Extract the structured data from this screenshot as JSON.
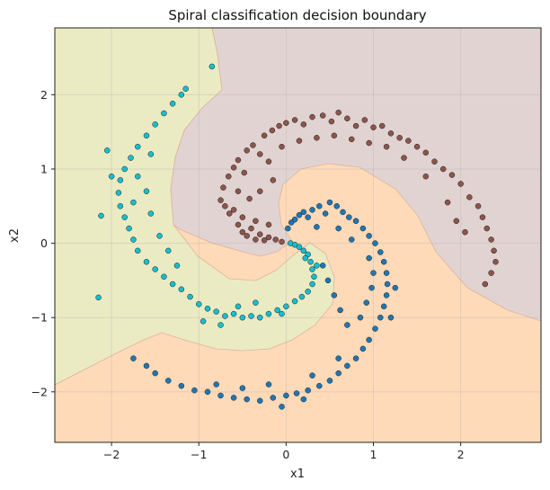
{
  "chart_data": {
    "type": "scatter",
    "title": "Spiral classification decision boundary",
    "xlabel": "x1",
    "ylabel": "x2",
    "xlim": [
      -2.65,
      2.92
    ],
    "ylim": [
      -2.68,
      2.9
    ],
    "xticks": [
      -2,
      -1,
      0,
      1,
      2
    ],
    "yticks": [
      -2,
      -1,
      0,
      1,
      2
    ],
    "grid": true,
    "regions": [
      {
        "name": "",
        "fill": "#ffdab9"
      },
      {
        "name": "",
        "fill": "#ebebc3"
      },
      {
        "name": "",
        "fill": "#e2d3d3"
      }
    ],
    "series": [
      {
        "name": "",
        "color": "#8c564b",
        "points": [
          [
            -0.75,
            0.58
          ],
          [
            -0.7,
            0.5
          ],
          [
            -0.65,
            0.4
          ],
          [
            -0.6,
            0.45
          ],
          [
            -0.55,
            0.25
          ],
          [
            -0.5,
            0.15
          ],
          [
            -0.45,
            0.1
          ],
          [
            -0.4,
            0.2
          ],
          [
            -0.35,
            0.05
          ],
          [
            -0.3,
            0.12
          ],
          [
            -0.25,
            0.04
          ],
          [
            -0.2,
            0.08
          ],
          [
            -0.12,
            0.05
          ],
          [
            -0.05,
            0.02
          ],
          [
            -0.72,
            0.75
          ],
          [
            -0.66,
            0.9
          ],
          [
            -0.6,
            1.02
          ],
          [
            -0.55,
            1.12
          ],
          [
            -0.48,
            0.95
          ],
          [
            -0.45,
            1.25
          ],
          [
            -0.38,
            1.32
          ],
          [
            -0.3,
            1.2
          ],
          [
            -0.25,
            1.45
          ],
          [
            -0.16,
            1.52
          ],
          [
            -0.08,
            1.58
          ],
          [
            -0.2,
            1.1
          ],
          [
            0.0,
            1.62
          ],
          [
            0.1,
            1.66
          ],
          [
            0.2,
            1.6
          ],
          [
            0.3,
            1.7
          ],
          [
            0.42,
            1.72
          ],
          [
            0.52,
            1.64
          ],
          [
            0.6,
            1.76
          ],
          [
            0.7,
            1.68
          ],
          [
            0.8,
            1.58
          ],
          [
            0.9,
            1.66
          ],
          [
            1.0,
            1.56
          ],
          [
            1.1,
            1.58
          ],
          [
            1.2,
            1.48
          ],
          [
            1.3,
            1.42
          ],
          [
            1.4,
            1.38
          ],
          [
            1.5,
            1.3
          ],
          [
            1.6,
            1.22
          ],
          [
            1.7,
            1.1
          ],
          [
            1.8,
            1.0
          ],
          [
            1.9,
            0.92
          ],
          [
            2.0,
            0.8
          ],
          [
            2.1,
            0.62
          ],
          [
            2.2,
            0.5
          ],
          [
            2.25,
            0.35
          ],
          [
            2.3,
            0.2
          ],
          [
            2.35,
            0.05
          ],
          [
            2.38,
            -0.1
          ],
          [
            2.4,
            -0.25
          ],
          [
            2.35,
            -0.4
          ],
          [
            2.28,
            -0.55
          ],
          [
            1.95,
            0.3
          ],
          [
            2.05,
            0.15
          ],
          [
            1.85,
            0.55
          ],
          [
            1.6,
            0.9
          ],
          [
            1.35,
            1.15
          ],
          [
            1.15,
            1.3
          ],
          [
            0.95,
            1.35
          ],
          [
            0.75,
            1.4
          ],
          [
            0.55,
            1.45
          ],
          [
            0.35,
            1.42
          ],
          [
            0.15,
            1.38
          ],
          [
            -0.05,
            1.3
          ],
          [
            -0.15,
            0.85
          ],
          [
            -0.3,
            0.7
          ],
          [
            -0.42,
            0.6
          ],
          [
            -0.55,
            0.7
          ],
          [
            -0.5,
            0.35
          ],
          [
            -0.35,
            0.3
          ],
          [
            -0.2,
            0.25
          ]
        ]
      },
      {
        "name": "",
        "color": "#1f77b4",
        "points": [
          [
            0.02,
            0.2
          ],
          [
            0.06,
            0.28
          ],
          [
            0.1,
            0.32
          ],
          [
            0.15,
            0.38
          ],
          [
            0.2,
            0.42
          ],
          [
            0.25,
            0.35
          ],
          [
            0.3,
            0.45
          ],
          [
            0.38,
            0.5
          ],
          [
            0.45,
            0.4
          ],
          [
            0.5,
            0.55
          ],
          [
            0.58,
            0.5
          ],
          [
            0.65,
            0.42
          ],
          [
            0.72,
            0.35
          ],
          [
            0.8,
            0.3
          ],
          [
            0.88,
            0.2
          ],
          [
            0.95,
            0.1
          ],
          [
            1.02,
            0.0
          ],
          [
            1.08,
            -0.12
          ],
          [
            1.12,
            -0.25
          ],
          [
            1.15,
            -0.4
          ],
          [
            1.16,
            -0.55
          ],
          [
            1.15,
            -0.7
          ],
          [
            1.12,
            -0.85
          ],
          [
            1.08,
            -1.0
          ],
          [
            1.02,
            -1.15
          ],
          [
            0.95,
            -1.3
          ],
          [
            0.88,
            -1.42
          ],
          [
            0.8,
            -1.55
          ],
          [
            0.7,
            -1.65
          ],
          [
            0.6,
            -1.75
          ],
          [
            0.5,
            -1.85
          ],
          [
            0.38,
            -1.92
          ],
          [
            0.25,
            -1.98
          ],
          [
            0.12,
            -2.02
          ],
          [
            0.0,
            -2.05
          ],
          [
            -0.15,
            -2.08
          ],
          [
            -0.3,
            -2.12
          ],
          [
            -0.45,
            -2.1
          ],
          [
            -0.6,
            -2.08
          ],
          [
            -0.75,
            -2.05
          ],
          [
            -0.9,
            -2.0
          ],
          [
            -1.05,
            -1.98
          ],
          [
            -1.2,
            -1.92
          ],
          [
            -1.35,
            -1.85
          ],
          [
            -1.5,
            -1.75
          ],
          [
            -1.6,
            -1.65
          ],
          [
            -1.75,
            -1.55
          ],
          [
            0.42,
            -0.3
          ],
          [
            0.48,
            -0.5
          ],
          [
            0.55,
            -0.7
          ],
          [
            0.62,
            -0.9
          ],
          [
            0.7,
            -1.1
          ],
          [
            0.85,
            -1.0
          ],
          [
            0.92,
            -0.8
          ],
          [
            0.98,
            -0.6
          ],
          [
            1.0,
            -0.4
          ],
          [
            0.95,
            -0.2
          ],
          [
            0.75,
            0.05
          ],
          [
            0.6,
            0.2
          ],
          [
            0.35,
            0.22
          ],
          [
            -0.2,
            -1.9
          ],
          [
            -0.5,
            -1.95
          ],
          [
            -0.8,
            -1.9
          ],
          [
            0.3,
            -1.78
          ],
          [
            0.6,
            -1.55
          ],
          [
            0.2,
            -2.1
          ],
          [
            -0.05,
            -2.2
          ],
          [
            1.25,
            -0.6
          ],
          [
            1.2,
            -1.0
          ]
        ]
      },
      {
        "name": "",
        "color": "#17becf",
        "points": [
          [
            0.05,
            0.0
          ],
          [
            0.1,
            -0.02
          ],
          [
            0.15,
            -0.05
          ],
          [
            0.2,
            -0.1
          ],
          [
            0.25,
            -0.15
          ],
          [
            0.28,
            -0.25
          ],
          [
            0.3,
            -0.35
          ],
          [
            0.32,
            -0.45
          ],
          [
            0.3,
            -0.55
          ],
          [
            0.25,
            -0.65
          ],
          [
            0.18,
            -0.72
          ],
          [
            0.1,
            -0.78
          ],
          [
            0.0,
            -0.85
          ],
          [
            -0.1,
            -0.9
          ],
          [
            -0.2,
            -0.95
          ],
          [
            -0.3,
            -1.0
          ],
          [
            -0.4,
            -0.98
          ],
          [
            -0.5,
            -1.0
          ],
          [
            -0.6,
            -0.95
          ],
          [
            -0.7,
            -0.98
          ],
          [
            -0.8,
            -0.92
          ],
          [
            -0.9,
            -0.88
          ],
          [
            -1.0,
            -0.82
          ],
          [
            -1.1,
            -0.72
          ],
          [
            -1.2,
            -0.62
          ],
          [
            -1.3,
            -0.55
          ],
          [
            -1.4,
            -0.45
          ],
          [
            -1.5,
            -0.35
          ],
          [
            -1.6,
            -0.25
          ],
          [
            -1.7,
            -0.1
          ],
          [
            -1.75,
            0.05
          ],
          [
            -1.8,
            0.2
          ],
          [
            -1.85,
            0.35
          ],
          [
            -1.9,
            0.5
          ],
          [
            -1.92,
            0.68
          ],
          [
            -1.9,
            0.85
          ],
          [
            -1.85,
            1.0
          ],
          [
            -1.78,
            1.15
          ],
          [
            -1.7,
            1.3
          ],
          [
            -1.6,
            1.45
          ],
          [
            -1.5,
            1.6
          ],
          [
            -1.4,
            1.75
          ],
          [
            -1.3,
            1.88
          ],
          [
            -1.2,
            2.0
          ],
          [
            -1.15,
            2.08
          ],
          [
            -0.85,
            2.38
          ],
          [
            -2.15,
            -0.73
          ],
          [
            -2.12,
            0.37
          ],
          [
            -1.55,
            0.4
          ],
          [
            -1.45,
            0.1
          ],
          [
            -1.35,
            -0.1
          ],
          [
            -1.6,
            0.7
          ],
          [
            -1.55,
            1.2
          ],
          [
            -1.7,
            0.9
          ],
          [
            -0.35,
            -0.8
          ],
          [
            -0.55,
            -0.85
          ],
          [
            -0.75,
            -1.1
          ],
          [
            -0.95,
            -1.05
          ],
          [
            0.22,
            -0.2
          ],
          [
            0.35,
            -0.3
          ],
          [
            -2.0,
            0.9
          ],
          [
            -2.05,
            1.25
          ],
          [
            -1.25,
            -0.3
          ],
          [
            -1.75,
            0.55
          ],
          [
            -0.05,
            -0.95
          ]
        ]
      }
    ]
  }
}
